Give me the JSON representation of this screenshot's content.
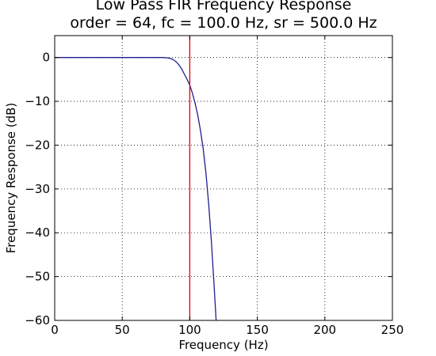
{
  "chart_data": {
    "type": "line",
    "title": "Low Pass FIR Frequency Response",
    "subtitle": "order = 64, fc = 100.0 Hz, sr = 500.0 Hz",
    "xlabel": "Frequency (Hz)",
    "ylabel": "Frequency Response (dB)",
    "xlim": [
      0,
      250
    ],
    "ylim": [
      -60,
      5
    ],
    "x_ticks": [
      0,
      50,
      100,
      150,
      200,
      250
    ],
    "y_ticks": [
      0,
      -10,
      -20,
      -30,
      -40,
      -50,
      -60
    ],
    "x_tick_labels": [
      "0",
      "50",
      "100",
      "150",
      "200",
      "250"
    ],
    "y_tick_labels": [
      "0",
      "−10",
      "−20",
      "−30",
      "−40",
      "−50",
      "−60"
    ],
    "grid": true,
    "grid_style": "dotted",
    "series": [
      {
        "color": "#1f1f8f",
        "x": [
          0,
          20,
          40,
          60,
          70,
          80,
          84,
          86,
          88,
          90,
          92,
          94,
          96,
          98,
          100,
          102,
          104,
          106,
          108,
          110,
          112,
          114,
          116,
          118,
          119.5
        ],
        "y": [
          0,
          0,
          0,
          0,
          0,
          0,
          -0.1,
          -0.25,
          -0.55,
          -1.0,
          -1.7,
          -2.6,
          -3.8,
          -5.0,
          -6.3,
          -8.2,
          -10.5,
          -13.3,
          -16.8,
          -21.0,
          -26.5,
          -33.5,
          -42.0,
          -52.0,
          -60.0
        ]
      }
    ],
    "cutoff_marker": {
      "x": 100,
      "color": "#e00000"
    }
  }
}
